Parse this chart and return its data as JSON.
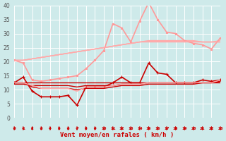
{
  "x": [
    0,
    1,
    2,
    3,
    4,
    5,
    6,
    7,
    8,
    9,
    10,
    11,
    12,
    13,
    14,
    15,
    16,
    17,
    18,
    19,
    20,
    21,
    22,
    23
  ],
  "series": [
    {
      "name": "line1_light_upper_straight",
      "color": "#ffaaaa",
      "linewidth": 1.0,
      "marker": null,
      "markersize": 0,
      "values": [
        20.5,
        20.5,
        21.0,
        21.5,
        22.0,
        22.5,
        23.0,
        23.5,
        24.0,
        24.5,
        25.0,
        25.5,
        26.0,
        26.5,
        27.0,
        27.0,
        27.0,
        27.0,
        27.0,
        27.0,
        27.0,
        27.0,
        27.0,
        27.0
      ]
    },
    {
      "name": "line2_light_upper_straight2",
      "color": "#ffaaaa",
      "linewidth": 1.0,
      "marker": null,
      "markersize": 0,
      "values": [
        20.5,
        20.5,
        21.0,
        21.5,
        22.0,
        22.5,
        23.0,
        23.5,
        24.0,
        24.5,
        25.0,
        25.5,
        26.0,
        26.5,
        27.0,
        27.5,
        27.5,
        27.5,
        27.5,
        27.5,
        27.5,
        27.0,
        27.0,
        27.5
      ]
    },
    {
      "name": "line3_light_upper_wavy",
      "color": "#ff9999",
      "linewidth": 1.2,
      "marker": "s",
      "markersize": 2.0,
      "values": [
        20.5,
        19.5,
        13.5,
        13.0,
        13.5,
        14.0,
        14.5,
        15.0,
        17.5,
        20.5,
        24.0,
        33.5,
        32.0,
        27.0,
        34.5,
        41.0,
        35.0,
        30.5,
        30.0,
        27.5,
        26.5,
        26.0,
        24.5,
        28.5
      ]
    },
    {
      "name": "line4_medium_upper_straight",
      "color": "#ffaaaa",
      "linewidth": 1.0,
      "marker": null,
      "markersize": 0,
      "values": [
        20.5,
        20.5,
        21.0,
        21.5,
        22.0,
        22.5,
        23.0,
        23.5,
        24.0,
        24.5,
        25.0,
        25.5,
        26.0,
        26.5,
        27.0,
        27.2,
        27.2,
        27.2,
        27.2,
        27.2,
        27.2,
        27.0,
        27.0,
        27.0
      ]
    },
    {
      "name": "line5_dark_marker",
      "color": "#cc0000",
      "linewidth": 1.2,
      "marker": "+",
      "markersize": 3,
      "values": [
        12.5,
        14.5,
        9.5,
        7.5,
        7.5,
        7.5,
        8.0,
        4.5,
        11.0,
        11.0,
        11.0,
        12.5,
        14.5,
        12.5,
        12.5,
        19.5,
        16.0,
        15.5,
        12.5,
        12.5,
        12.5,
        13.5,
        13.0,
        13.5
      ]
    },
    {
      "name": "line6_dark_straight1",
      "color": "#cc0000",
      "linewidth": 1.0,
      "marker": null,
      "markersize": 0,
      "values": [
        12.5,
        12.5,
        12.5,
        12.5,
        12.5,
        12.5,
        12.5,
        12.5,
        12.5,
        12.5,
        12.5,
        12.5,
        12.5,
        12.5,
        12.5,
        12.5,
        12.5,
        12.5,
        12.5,
        12.5,
        12.5,
        12.5,
        12.5,
        12.5
      ]
    },
    {
      "name": "line7_dark_straight2",
      "color": "#cc0000",
      "linewidth": 1.0,
      "marker": null,
      "markersize": 0,
      "values": [
        12.0,
        12.0,
        11.5,
        11.5,
        11.5,
        11.5,
        11.5,
        11.0,
        11.5,
        11.5,
        11.5,
        11.5,
        12.0,
        12.0,
        12.0,
        12.5,
        12.5,
        12.5,
        12.5,
        12.5,
        12.5,
        12.5,
        12.5,
        13.0
      ]
    },
    {
      "name": "line8_dark_lower",
      "color": "#cc0000",
      "linewidth": 1.0,
      "marker": null,
      "markersize": 0,
      "values": [
        12.5,
        12.5,
        11.0,
        10.5,
        10.5,
        10.5,
        10.5,
        10.0,
        10.5,
        10.5,
        10.5,
        11.0,
        11.5,
        11.5,
        11.5,
        12.0,
        12.0,
        12.0,
        12.0,
        12.0,
        12.0,
        12.5,
        12.5,
        13.0
      ]
    },
    {
      "name": "line9_light_lower",
      "color": "#ffaaaa",
      "linewidth": 1.0,
      "marker": null,
      "markersize": 0,
      "values": [
        12.5,
        12.5,
        11.5,
        10.5,
        10.5,
        10.5,
        10.5,
        9.5,
        11.0,
        11.0,
        11.0,
        11.5,
        12.0,
        12.0,
        12.0,
        12.5,
        12.5,
        12.5,
        12.5,
        12.5,
        12.5,
        12.5,
        12.5,
        13.5
      ]
    }
  ],
  "xlabel": "Vent moyen/en rafales ( km/h )",
  "xlim": [
    0,
    23
  ],
  "ylim": [
    0,
    40
  ],
  "yticks": [
    0,
    5,
    10,
    15,
    20,
    25,
    30,
    35,
    40
  ],
  "xticks": [
    0,
    1,
    2,
    3,
    4,
    5,
    6,
    7,
    8,
    9,
    10,
    11,
    12,
    13,
    14,
    15,
    16,
    17,
    18,
    19,
    20,
    21,
    22,
    23
  ],
  "background_color": "#ceeaea",
  "grid_color": "#ffffff",
  "tick_color": "#cc0000",
  "label_color": "#cc0000"
}
